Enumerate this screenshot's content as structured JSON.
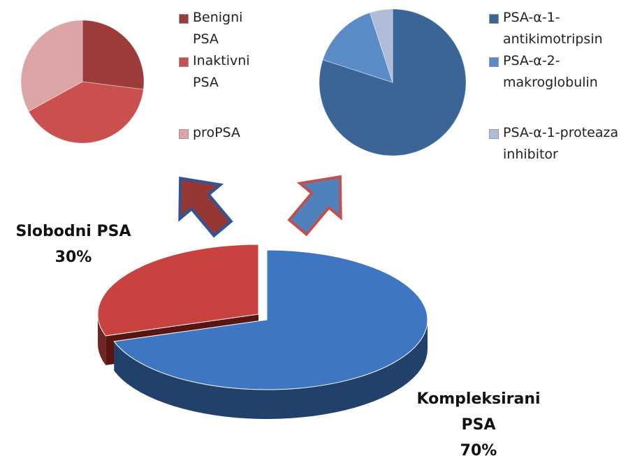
{
  "chart_data": [
    {
      "type": "pie",
      "categories": [
        "Benigni PSA",
        "Inaktivni PSA",
        "proPSA"
      ],
      "values": [
        27,
        40,
        33
      ],
      "colors": [
        "#9b3b3a",
        "#c9504f",
        "#dca5a5"
      ]
    },
    {
      "type": "pie",
      "categories": [
        "PSA-α-1-antikimotripsin",
        "PSA-α-2-makroglobulin",
        "PSA-α-1-proteaza inhibitor"
      ],
      "values": [
        80,
        15,
        5
      ],
      "colors": [
        "#3b6597",
        "#5b8bc7",
        "#aebcd8"
      ]
    },
    {
      "type": "pie3d",
      "categories": [
        "Slobodni PSA",
        "Kompleksirani PSA"
      ],
      "values": [
        30,
        70
      ],
      "value_labels": [
        "30%",
        "70%"
      ],
      "colors": [
        "#c8433f",
        "#3e76c1"
      ]
    }
  ]
}
